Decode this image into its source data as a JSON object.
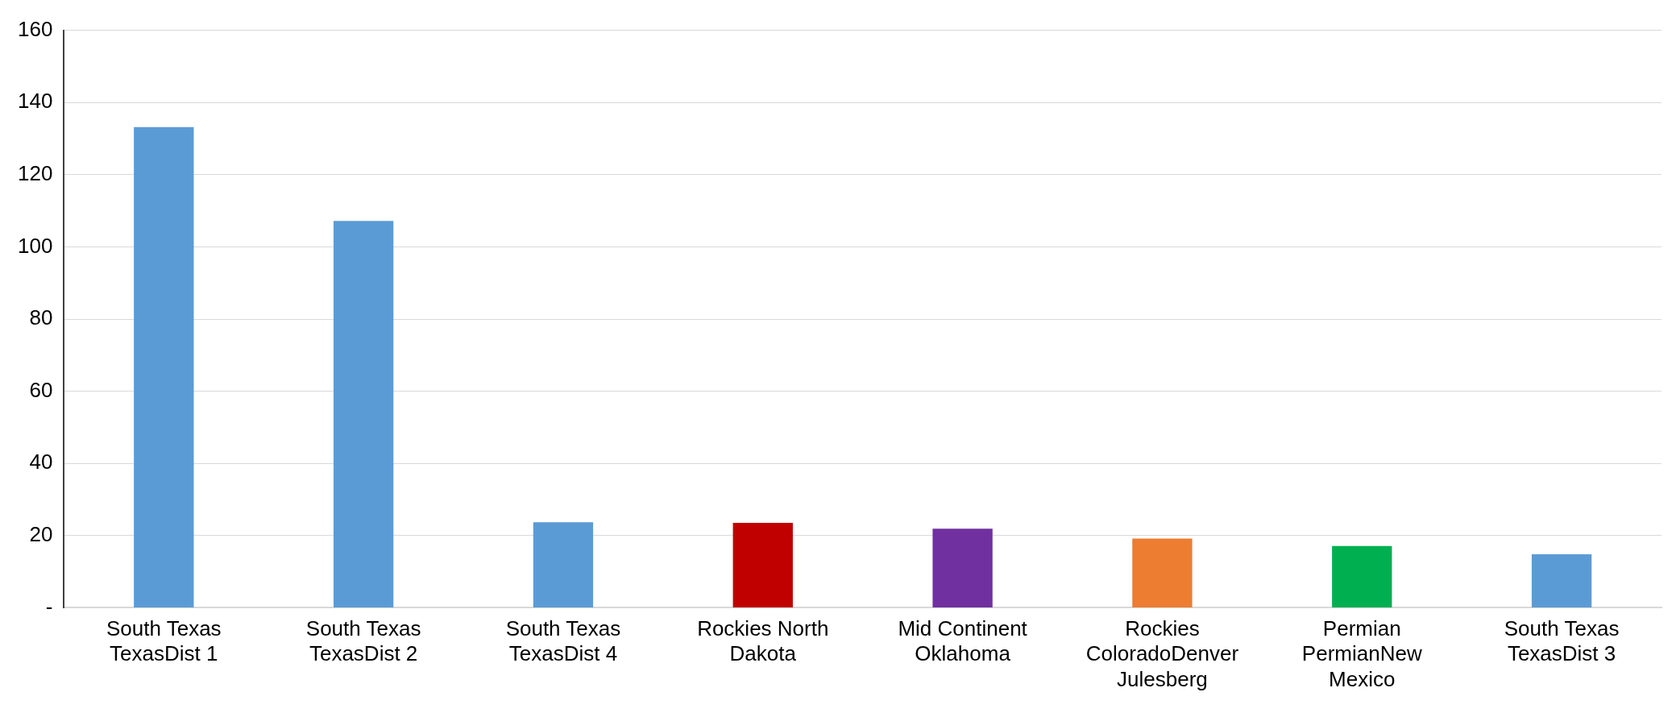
{
  "chart_data": {
    "type": "bar",
    "categories": [
      "South Texas TexasDist 1",
      "South Texas TexasDist 2",
      "South Texas TexasDist 4",
      "Rockies North Dakota",
      "Mid Continent Oklahoma",
      "Rockies ColoradoDenver Julesberg",
      "Permian PermianNew Mexico",
      "South Texas TexasDist 3"
    ],
    "values": [
      133.2,
      107.2,
      23.7,
      23.5,
      21.9,
      19.2,
      17.1,
      14.8
    ],
    "colors": [
      "#5b9bd5",
      "#5b9bd5",
      "#5b9bd5",
      "#c00000",
      "#7030a0",
      "#ed7d31",
      "#00b050",
      "#5b9bd5"
    ],
    "ylim": [
      0,
      160
    ],
    "yticks": [
      {
        "value": 0,
        "label": "-"
      },
      20,
      40,
      60,
      80,
      100,
      120,
      140,
      160
    ],
    "grid": "y",
    "legend": false
  }
}
